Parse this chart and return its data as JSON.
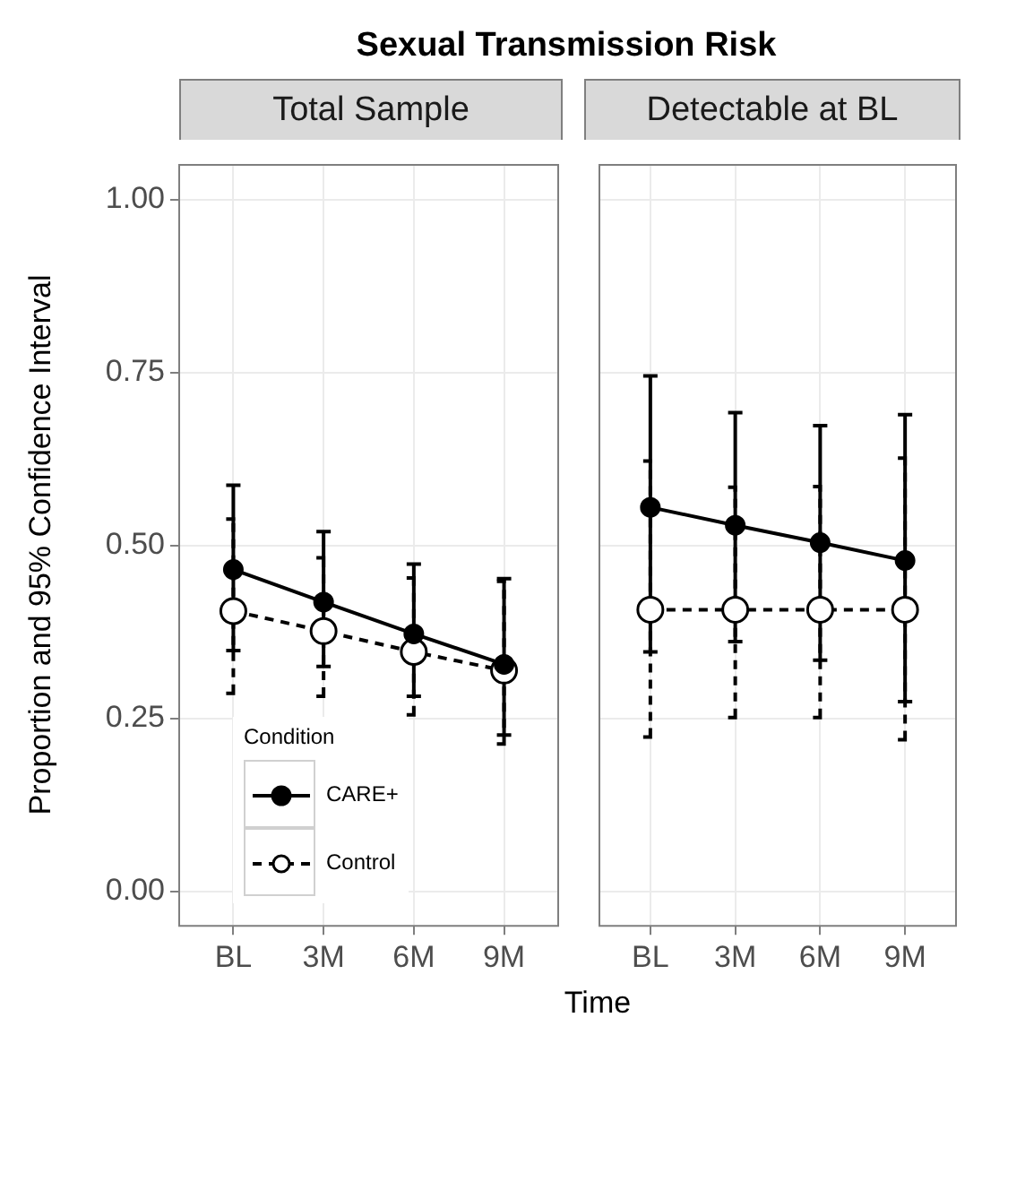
{
  "chart_data": [
    {
      "type": "line",
      "title": "Sexual Transmission Risk",
      "subtitle": "Total Sample",
      "xlabel": "Time",
      "ylabel": "Proportion and 95% Confidence Interval",
      "legend_title": "Condition",
      "legend": "bottom left",
      "categories": [
        "BL",
        "3M",
        "6M",
        "9M"
      ],
      "ylim": [
        -0.05,
        1.05
      ],
      "yticks": [
        {
          "value": 0,
          "label": "0.00"
        },
        {
          "value": 0.25,
          "label": "0.25"
        },
        {
          "value": 0.5,
          "label": "0.50"
        },
        {
          "value": 0.75,
          "label": "0.75"
        },
        {
          "value": 1,
          "label": "1.00"
        }
      ],
      "grid": true,
      "marker": "circle",
      "series": [
        {
          "name": "CARE+",
          "color": "#000000",
          "line_style": "solid",
          "values": [
            0.465,
            0.418,
            0.372,
            0.328
          ],
          "errors": [
            [
              0.348,
              0.587
            ],
            [
              0.325,
              0.52
            ],
            [
              0.282,
              0.473
            ],
            [
              0.226,
              0.452
            ]
          ]
        },
        {
          "name": "Control",
          "color": "#000000",
          "line_style": "dashed",
          "values": [
            0.405,
            0.376,
            0.346,
            0.319
          ],
          "errors": [
            [
              0.286,
              0.538
            ],
            [
              0.282,
              0.482
            ],
            [
              0.255,
              0.453
            ],
            [
              0.213,
              0.448
            ]
          ]
        }
      ]
    },
    {
      "type": "line",
      "subtitle": "Detectable at BL",
      "categories": [
        "BL",
        "3M",
        "6M",
        "9M"
      ],
      "ylim": [
        -0.05,
        1.05
      ],
      "yticks": [
        {
          "value": 0,
          "label": null
        },
        {
          "value": 0.25,
          "label": null
        },
        {
          "value": 0.5,
          "label": null
        },
        {
          "value": 0.75,
          "label": null
        },
        {
          "value": 1,
          "label": null
        }
      ],
      "grid": true,
      "tick_labels": "x",
      "marker": "circle",
      "series": [
        {
          "color": "#000000",
          "line_style": "solid",
          "values": [
            0.555,
            0.529,
            0.504,
            0.478
          ],
          "errors": [
            [
              0.346,
              0.745
            ],
            [
              0.361,
              0.692
            ],
            [
              0.334,
              0.673
            ],
            [
              0.274,
              0.689
            ]
          ]
        },
        {
          "color": "#000000",
          "line_style": "dashed",
          "values": [
            0.407,
            0.407,
            0.407,
            0.407
          ],
          "errors": [
            [
              0.223,
              0.622
            ],
            [
              0.251,
              0.584
            ],
            [
              0.251,
              0.585
            ],
            [
              0.219,
              0.626
            ]
          ]
        }
      ]
    }
  ]
}
